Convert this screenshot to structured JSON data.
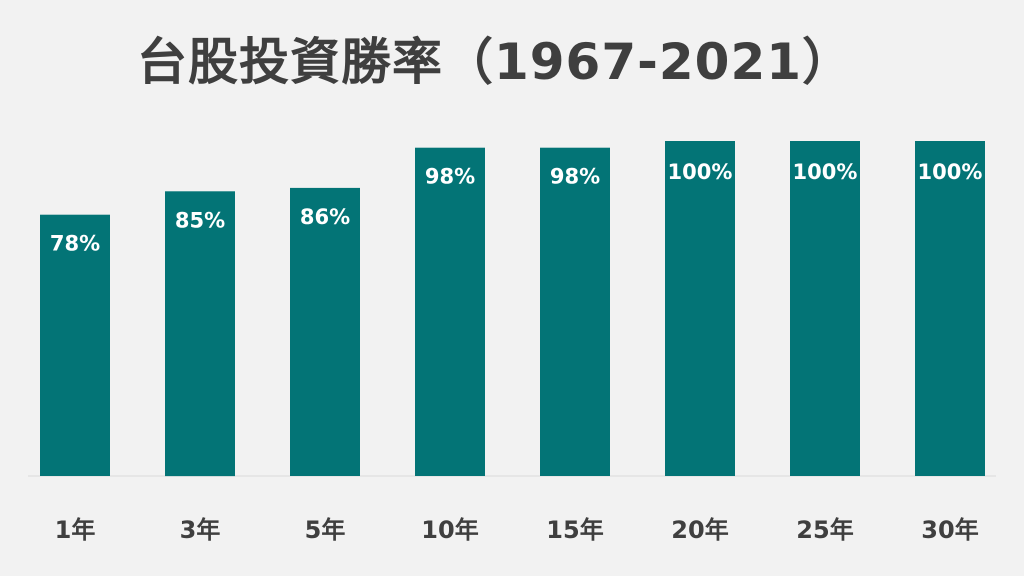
{
  "chart_data": {
    "type": "bar",
    "title": "台股投資勝率（1967-2021）",
    "categories": [
      "1年",
      "3年",
      "5年",
      "10年",
      "15年",
      "20年",
      "25年",
      "30年"
    ],
    "values": [
      78,
      85,
      86,
      98,
      98,
      100,
      100,
      100
    ],
    "data_labels": [
      "78%",
      "85%",
      "86%",
      "98%",
      "98%",
      "100%",
      "100%",
      "100%"
    ],
    "xlabel": "",
    "ylabel": "",
    "ylim": [
      0,
      100
    ],
    "grid": false,
    "legend": "none",
    "bar_color": "#037476",
    "background_color": "#f2f2f2",
    "text_color": "#3f3f3f",
    "label_color": "#ffffff"
  }
}
